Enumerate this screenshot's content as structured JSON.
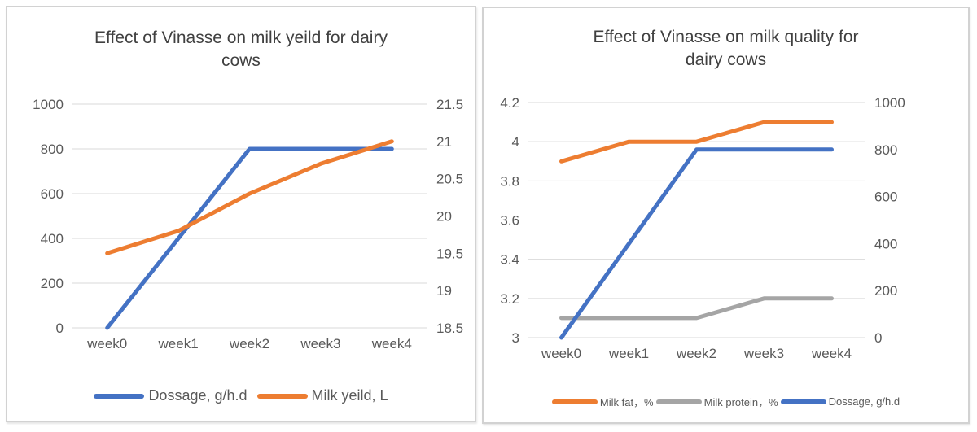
{
  "colors": {
    "blue": "#4472C4",
    "orange": "#ED7D31",
    "gray": "#A5A5A5",
    "grid": "#D9D9D9",
    "title_text": "#404040",
    "axis_text": "#595959"
  },
  "chart_data": [
    {
      "type": "line",
      "title": "Effect of Vinasse on milk yeild for dairy cows",
      "categories": [
        "week0",
        "week1",
        "week2",
        "week3",
        "week4"
      ],
      "series": [
        {
          "name": "Dossage, g/h.d",
          "axis": "left",
          "color_key": "blue",
          "values": [
            0,
            400,
            800,
            800,
            800
          ]
        },
        {
          "name": "Milk yeild, L",
          "axis": "right",
          "color_key": "orange",
          "values": [
            19.5,
            19.8,
            20.3,
            20.7,
            21
          ]
        }
      ],
      "left_axis": {
        "min": 0,
        "max": 1000,
        "ticks": [
          0,
          200,
          400,
          600,
          800,
          1000
        ]
      },
      "right_axis": {
        "min": 18.5,
        "max": 21.5,
        "ticks": [
          18.5,
          19,
          19.5,
          20,
          20.5,
          21,
          21.5
        ]
      },
      "grid": "horizontal-left-ticks",
      "legend_position": "bottom"
    },
    {
      "type": "line",
      "title": "Effect of Vinasse on milk quality for dairy cows",
      "categories": [
        "week0",
        "week1",
        "week2",
        "week3",
        "week4"
      ],
      "series": [
        {
          "name": "Milk fat，%",
          "axis": "left",
          "color_key": "orange",
          "values": [
            3.9,
            4,
            4,
            4.1,
            4.1
          ]
        },
        {
          "name": "Milk protein，%",
          "axis": "left",
          "color_key": "gray",
          "values": [
            3.1,
            3.1,
            3.1,
            3.2,
            3.2
          ]
        },
        {
          "name": "Dossage, g/h.d",
          "axis": "right",
          "color_key": "blue",
          "values": [
            0,
            400,
            800,
            800,
            800
          ]
        }
      ],
      "left_axis": {
        "min": 3,
        "max": 4.2,
        "ticks": [
          3,
          3.2,
          3.4,
          3.6,
          3.8,
          4,
          4.2
        ]
      },
      "right_axis": {
        "min": 0,
        "max": 1000,
        "ticks": [
          0,
          200,
          400,
          600,
          800,
          1000
        ]
      },
      "grid": "horizontal-left-ticks",
      "legend_position": "bottom"
    }
  ]
}
